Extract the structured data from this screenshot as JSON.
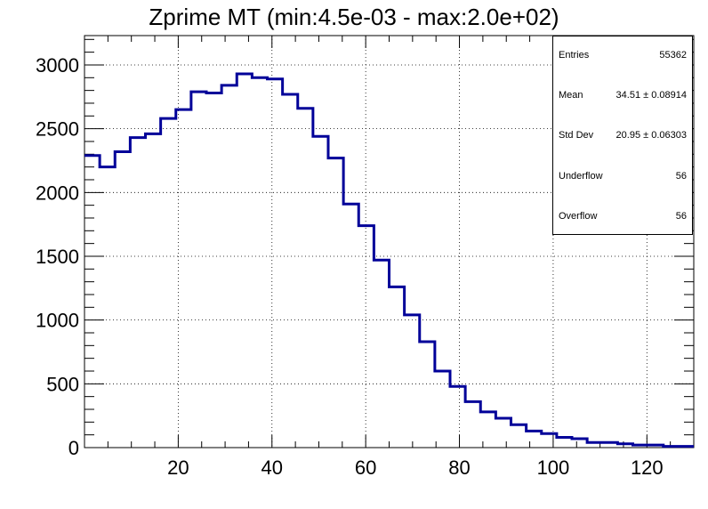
{
  "chart_data": {
    "type": "histogram",
    "title": "Zprime MT (min:4.5e-03 - max:2.0e+02)",
    "xlabel": "",
    "ylabel": "",
    "xlim": [
      0,
      130
    ],
    "ylim": [
      0,
      3230
    ],
    "bin_width": 3.25,
    "x_ticks": [
      20,
      40,
      60,
      80,
      100,
      120
    ],
    "y_ticks": [
      0,
      500,
      1000,
      1500,
      2000,
      2500,
      3000
    ],
    "grid": true,
    "line_color": "#000099",
    "values": [
      2290,
      2200,
      2320,
      2430,
      2460,
      2580,
      2650,
      2790,
      2780,
      2840,
      2930,
      2900,
      2890,
      2770,
      2660,
      2440,
      2270,
      1910,
      1740,
      1470,
      1260,
      1040,
      830,
      600,
      480,
      360,
      280,
      230,
      180,
      130,
      110,
      80,
      70,
      40,
      40,
      30,
      20,
      20,
      10,
      10
    ]
  },
  "stats": {
    "rows": [
      {
        "label": "Entries",
        "value": "55362"
      },
      {
        "label": "Mean",
        "value": "34.51 ± 0.08914"
      },
      {
        "label": "Std Dev",
        "value": "20.95 ± 0.06303"
      },
      {
        "label": "Underflow",
        "value": "56"
      },
      {
        "label": "Overflow",
        "value": "56"
      }
    ]
  }
}
